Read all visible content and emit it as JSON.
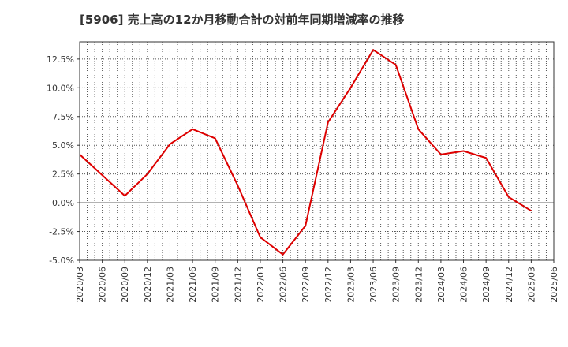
{
  "title": "[5906]  売上高の12か月移動合計の対前年同期増減率の推移",
  "chart_data": {
    "type": "line",
    "title": "[5906]  売上高の12か月移動合計の対前年同期増減率の推移",
    "xlabel": "",
    "ylabel": "",
    "ylim": [
      -5.0,
      14.0
    ],
    "grid": true,
    "line_color": "#dd0000",
    "y_ticks": [
      -5.0,
      -2.5,
      0.0,
      2.5,
      5.0,
      7.5,
      10.0,
      12.5
    ],
    "y_tick_labels": [
      "-5.0%",
      "-2.5%",
      "0.0%",
      "2.5%",
      "5.0%",
      "7.5%",
      "10.0%",
      "12.5%"
    ],
    "categories": [
      "2020/03",
      "2020/06",
      "2020/09",
      "2020/12",
      "2021/03",
      "2021/06",
      "2021/09",
      "2021/12",
      "2022/03",
      "2022/06",
      "2022/09",
      "2022/12",
      "2023/03",
      "2023/06",
      "2023/09",
      "2023/12",
      "2024/03",
      "2024/06",
      "2024/09",
      "2024/12",
      "2025/03",
      "2025/06"
    ],
    "series": [
      {
        "name": "対前年同期増減率",
        "values": [
          4.2,
          2.4,
          0.6,
          2.5,
          5.1,
          6.4,
          5.6,
          1.5,
          -3.0,
          -4.5,
          -2.0,
          7.0,
          10.0,
          13.3,
          12.0,
          6.4,
          4.2,
          4.5,
          3.9,
          0.5,
          -0.7,
          null
        ]
      }
    ]
  }
}
